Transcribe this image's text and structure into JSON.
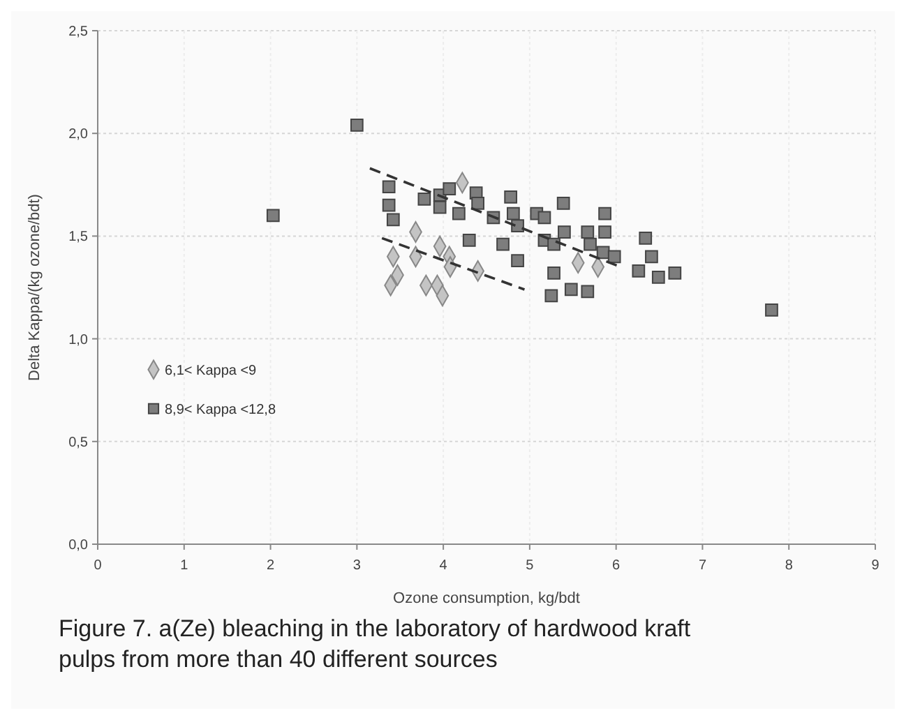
{
  "chart_data": {
    "type": "scatter",
    "xlabel": "Ozone consumption, kg/bdt",
    "ylabel": "Delta Kappa/(kg ozone/bdt)",
    "annotations": [
      "Figure 7. a(Ze) bleaching in the laboratory of hardwood kraft pulps from more than 40 different sources"
    ],
    "xlim": [
      0,
      9
    ],
    "xticks": [
      0,
      1,
      2,
      3,
      4,
      5,
      6,
      7,
      8,
      9
    ],
    "ylim": [
      0,
      2.5
    ],
    "yticks": [
      {
        "value": 0,
        "label": "0,0"
      },
      {
        "value": 0.5,
        "label": "0,5"
      },
      {
        "value": 1,
        "label": "1,0"
      },
      {
        "value": 1.5,
        "label": "1,5"
      },
      {
        "value": 2,
        "label": "2,0"
      },
      {
        "value": 2.5,
        "label": "2,5"
      }
    ],
    "grid": true,
    "legend": "left",
    "series": [
      {
        "name": "6,1< Kappa <9",
        "color": "#c4c4c4",
        "marker": "diamond",
        "x": [
          3.42,
          3.47,
          3.39,
          3.68,
          3.68,
          3.8,
          3.96,
          4.07,
          3.93,
          3.99,
          4.22,
          4.08,
          5.56,
          4.4,
          5.79
        ],
        "values": [
          1.4,
          1.31,
          1.26,
          1.52,
          1.4,
          1.26,
          1.45,
          1.4,
          1.26,
          1.21,
          1.76,
          1.35,
          1.37,
          1.33,
          1.35
        ]
      },
      {
        "name": "8,9< Kappa <12,8",
        "color": "#7d7d7d",
        "marker": "square",
        "x": [
          2.03,
          3.0,
          3.37,
          3.37,
          3.42,
          3.78,
          3.96,
          4.07,
          4.18,
          4.38,
          4.4,
          4.58,
          4.78,
          4.81,
          4.86,
          5.08,
          5.17,
          5.39,
          4.69,
          4.86,
          5.17,
          5.28,
          5.4,
          5.67,
          5.7,
          5.87,
          5.87,
          5.85,
          5.98,
          6.34,
          6.41,
          6.26,
          6.49,
          6.68,
          5.28,
          5.25,
          5.48,
          5.67,
          7.8,
          4.3,
          3.96
        ],
        "values": [
          1.6,
          2.04,
          1.74,
          1.65,
          1.58,
          1.68,
          1.7,
          1.73,
          1.61,
          1.71,
          1.66,
          1.59,
          1.69,
          1.61,
          1.55,
          1.61,
          1.59,
          1.66,
          1.46,
          1.38,
          1.48,
          1.46,
          1.52,
          1.52,
          1.46,
          1.61,
          1.52,
          1.42,
          1.4,
          1.49,
          1.4,
          1.33,
          1.3,
          1.32,
          1.32,
          1.21,
          1.24,
          1.23,
          1.14,
          1.48,
          1.64
        ]
      },
      {
        "type": "line",
        "color": "#333333",
        "line_style": "dashed",
        "x": [
          3.15,
          6.05
        ],
        "values": [
          1.83,
          1.35
        ]
      },
      {
        "type": "line",
        "color": "#333333",
        "line_style": "dashed",
        "x": [
          3.29,
          4.94
        ],
        "values": [
          1.49,
          1.24
        ]
      }
    ]
  }
}
